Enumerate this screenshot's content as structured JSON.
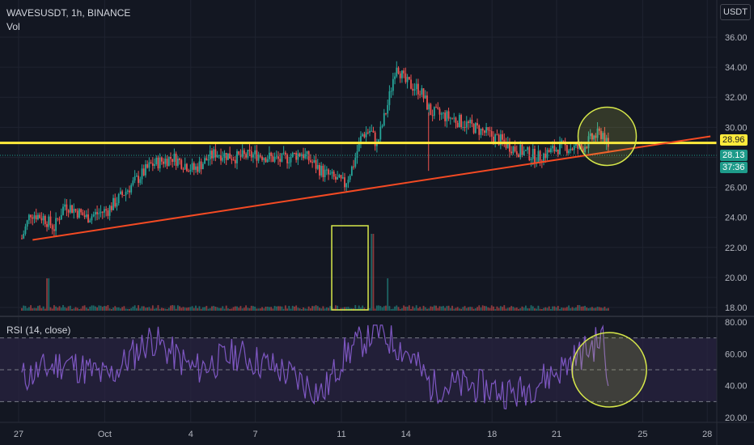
{
  "header": {
    "symbol_line": "WAVESUSDT, 1h, BINANCE",
    "volume_label": "Vol",
    "currency_button": "USDT"
  },
  "rsi_panel": {
    "label": "RSI (14, close)"
  },
  "price_badges": {
    "level": "28.96",
    "last": "28.13",
    "countdown": "37:36"
  },
  "colors": {
    "background": "#131722",
    "grid": "#1f2330",
    "up": "#26a69a",
    "down": "#ef5350",
    "horizontal_level": "#ffeb3b",
    "trendline": "#f44a23",
    "highlight": "#d7e84a",
    "rsi_line": "#7e57c2",
    "rsi_band": "#2a2342",
    "last_price": "#1e9b8a"
  },
  "chart_data": [
    {
      "type": "candlestick",
      "title": "WAVESUSDT, 1h, BINANCE",
      "x_ticks": [
        "27",
        "Oct",
        "4",
        "7",
        "11",
        "14",
        "18",
        "21",
        "25",
        "28"
      ],
      "y_ticks": [
        18.0,
        20.0,
        22.0,
        24.0,
        26.0,
        28.0,
        30.0,
        32.0,
        34.0,
        36.0
      ],
      "ylim": [
        17.6,
        37.2
      ],
      "unit": "USDT",
      "price_path_day_close": [
        {
          "day": 0,
          "price": 22.6
        },
        {
          "day": 0.4,
          "price": 24.3
        },
        {
          "day": 1.0,
          "price": 24.0
        },
        {
          "day": 1.5,
          "price": 23.3
        },
        {
          "day": 2.0,
          "price": 24.9
        },
        {
          "day": 3.0,
          "price": 24.0
        },
        {
          "day": 4.0,
          "price": 24.5
        },
        {
          "day": 5.0,
          "price": 26.0
        },
        {
          "day": 6.0,
          "price": 27.5
        },
        {
          "day": 7.0,
          "price": 28.0
        },
        {
          "day": 8.0,
          "price": 27.2
        },
        {
          "day": 9.0,
          "price": 28.3
        },
        {
          "day": 10.0,
          "price": 28.0
        },
        {
          "day": 11.0,
          "price": 28.2
        },
        {
          "day": 12.0,
          "price": 27.8
        },
        {
          "day": 13.0,
          "price": 28.3
        },
        {
          "day": 14.0,
          "price": 27.0
        },
        {
          "day": 15.0,
          "price": 26.2
        },
        {
          "day": 15.4,
          "price": 27.5
        },
        {
          "day": 15.8,
          "price": 29.5
        },
        {
          "day": 16.2,
          "price": 29.8
        },
        {
          "day": 16.5,
          "price": 28.8
        },
        {
          "day": 17.0,
          "price": 31.5
        },
        {
          "day": 17.4,
          "price": 34.3
        },
        {
          "day": 17.8,
          "price": 33.0
        },
        {
          "day": 18.5,
          "price": 32.5
        },
        {
          "day": 19.0,
          "price": 31.0
        },
        {
          "day": 20.0,
          "price": 30.6
        },
        {
          "day": 21.0,
          "price": 30.0
        },
        {
          "day": 22.0,
          "price": 29.3
        },
        {
          "day": 23.0,
          "price": 28.5
        },
        {
          "day": 24.0,
          "price": 28.0
        },
        {
          "day": 25.0,
          "price": 28.7
        },
        {
          "day": 26.0,
          "price": 28.6
        },
        {
          "day": 26.6,
          "price": 29.4
        },
        {
          "day": 27.0,
          "price": 29.6
        },
        {
          "day": 27.3,
          "price": 28.3
        }
      ],
      "horizontal_level": 28.96,
      "last_price": 28.13,
      "trendline": [
        {
          "day": 0.5,
          "price": 22.5
        },
        {
          "day": 32.0,
          "price": 29.4
        }
      ],
      "volume": {
        "label": "Vol",
        "spike_days": [
          1.2,
          16.3,
          17.0
        ]
      }
    },
    {
      "type": "line",
      "title": "RSI (14, close)",
      "y_ticks": [
        20.0,
        40.0,
        60.0,
        80.0
      ],
      "ylim": [
        16,
        82
      ],
      "bands": [
        30,
        50,
        70
      ],
      "rsi_path": [
        {
          "day": 0,
          "rsi": 45
        },
        {
          "day": 2,
          "rsi": 55
        },
        {
          "day": 4,
          "rsi": 45
        },
        {
          "day": 6,
          "rsi": 70
        },
        {
          "day": 8,
          "rsi": 50
        },
        {
          "day": 10,
          "rsi": 60
        },
        {
          "day": 12,
          "rsi": 50
        },
        {
          "day": 14,
          "rsi": 35
        },
        {
          "day": 15,
          "rsi": 60
        },
        {
          "day": 16.5,
          "rsi": 75
        },
        {
          "day": 18,
          "rsi": 60
        },
        {
          "day": 19,
          "rsi": 40
        },
        {
          "day": 21,
          "rsi": 40
        },
        {
          "day": 23,
          "rsi": 35
        },
        {
          "day": 25,
          "rsi": 50
        },
        {
          "day": 27,
          "rsi": 70
        },
        {
          "day": 27.3,
          "rsi": 33
        }
      ]
    }
  ]
}
